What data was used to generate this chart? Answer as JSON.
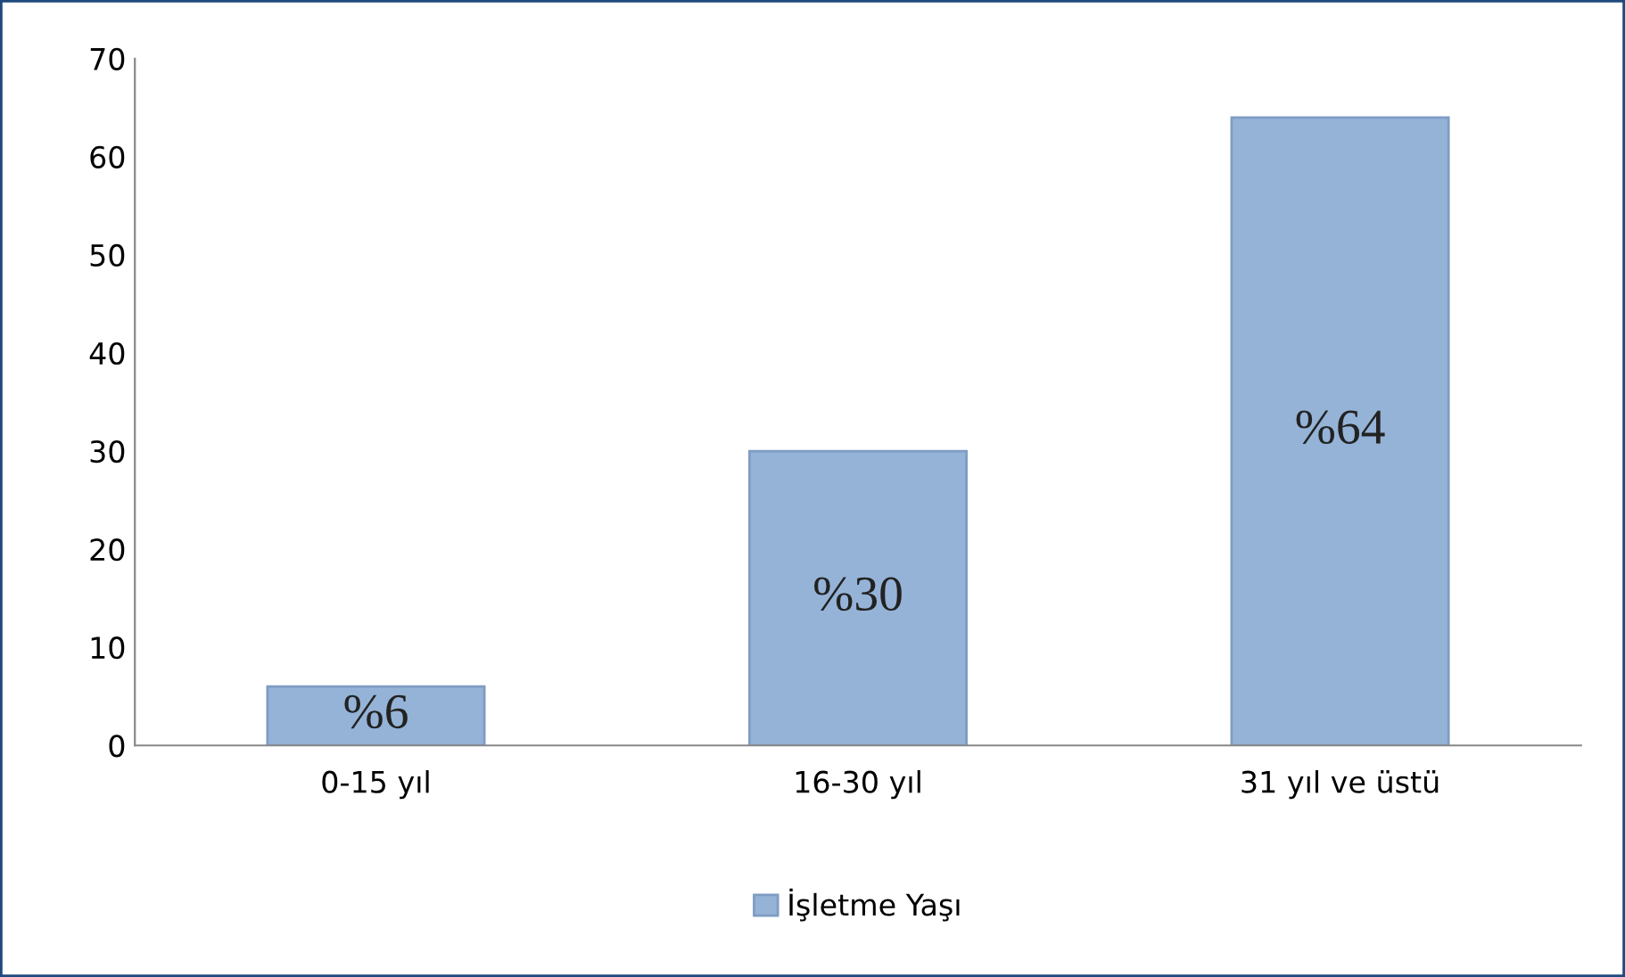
{
  "chart_data": {
    "type": "bar",
    "categories": [
      "0-15 yıl",
      "16-30 yıl",
      "31 yıl ve üstü"
    ],
    "series": [
      {
        "name": "İşletme Yaşı",
        "color": "#95b3d7",
        "values": [
          6,
          30,
          64
        ],
        "value_labels": [
          "%6",
          "%30",
          "%64"
        ]
      }
    ],
    "ylim": [
      0,
      70
    ],
    "yticks": [
      0,
      10,
      20,
      30,
      40,
      50,
      60,
      70
    ],
    "grid": false,
    "legend": "bottom"
  }
}
